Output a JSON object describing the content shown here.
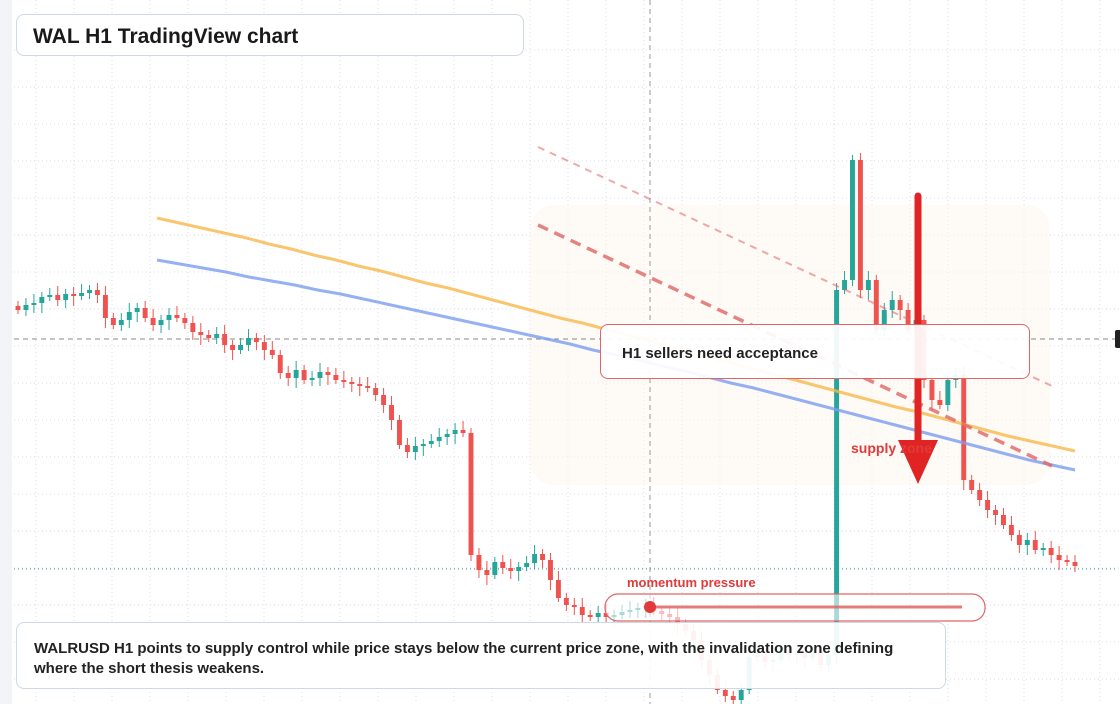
{
  "chart": {
    "title": "WAL H1 TradingView chart",
    "callout": "H1 sellers need acceptance",
    "supply_label": "supply zone",
    "momentum_label": "momentum pressure",
    "summary": "WALRUSD H1 points to supply control while price stays below the current price zone, with the invalidation zone defining where the short thesis weakens."
  },
  "colors": {
    "bull": "#26a69a",
    "bear": "#ef5350",
    "ma_fast": "#f7b84b",
    "ma_slow": "#7b9cf0",
    "trend": "#e06666",
    "arrow": "#e02424"
  },
  "chart_data": {
    "type": "candlestick",
    "title": "WAL H1 TradingView chart",
    "ylim": [
      0,
      704
    ],
    "series": [
      {
        "name": "price",
        "values": [
          310,
          305,
          303,
          297,
          295,
          300,
          294,
          296,
          293,
          290,
          295,
          318,
          325,
          320,
          312,
          308,
          318,
          325,
          320,
          315,
          318,
          323,
          332,
          335,
          338,
          334,
          345,
          350,
          345,
          338,
          342,
          350,
          355,
          373,
          378,
          370,
          380,
          378,
          372,
          375,
          380,
          382,
          384,
          386,
          388,
          395,
          405,
          420,
          445,
          452,
          446,
          444,
          441,
          437,
          434,
          430,
          433,
          555,
          570,
          575,
          562,
          568,
          571,
          567,
          563,
          554,
          560,
          580,
          598,
          605,
          607,
          615,
          617,
          613,
          617,
          615,
          612,
          610,
          608,
          606,
          611,
          614,
          617,
          624,
          631,
          640,
          660,
          675,
          690,
          696,
          700,
          690,
          657,
          655,
          662,
          660,
          650,
          655,
          652,
          658,
          650,
          665,
          655,
          290,
          280,
          160,
          290,
          280,
          330,
          310,
          300,
          310,
          330,
          320,
          380,
          400,
          405,
          380,
          375,
          480,
          490,
          500,
          510,
          515,
          525,
          535,
          545,
          540,
          550,
          548,
          555,
          560,
          562,
          566
        ]
      },
      {
        "name": "fast MA",
        "values": [
          218,
          223,
          228,
          233,
          238,
          244,
          249,
          255,
          260,
          266,
          271,
          277,
          283,
          288,
          294,
          300,
          306,
          312,
          318,
          323,
          329,
          335,
          341,
          347,
          353,
          359,
          365,
          371,
          377,
          383,
          389,
          395,
          401,
          407,
          412,
          418,
          424,
          430,
          436,
          441,
          446,
          451
        ]
      },
      {
        "name": "slow MA",
        "values": [
          260,
          264,
          268,
          272,
          277,
          281,
          285,
          290,
          294,
          299,
          304,
          309,
          314,
          319,
          324,
          329,
          334,
          339,
          344,
          350,
          355,
          360,
          366,
          371,
          377,
          383,
          388,
          394,
          400,
          406,
          412,
          418,
          424,
          430,
          436,
          442,
          448,
          454,
          460,
          465,
          470
        ]
      }
    ]
  }
}
